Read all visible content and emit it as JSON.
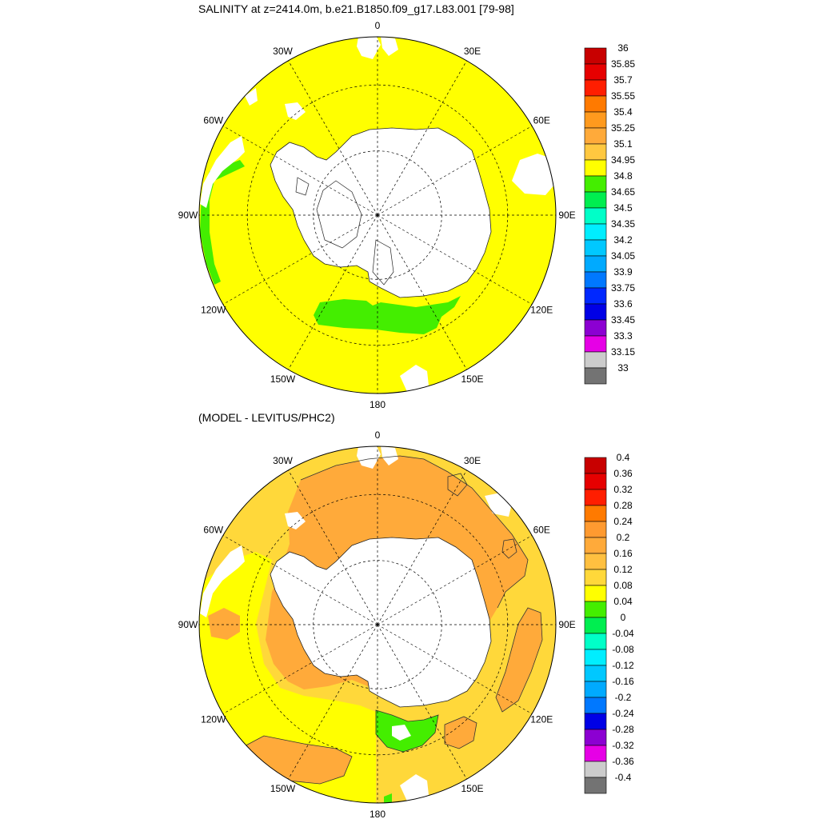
{
  "panels": [
    {
      "title": "SALINITY at z=2414.0m, b.e21.B1850.f09_g17.L83.001 [79-98]",
      "colorbar": {
        "labels": [
          "36",
          "35.85",
          "35.7",
          "35.55",
          "35.4",
          "35.25",
          "35.1",
          "34.95",
          "34.8",
          "34.65",
          "34.5",
          "34.35",
          "34.2",
          "34.05",
          "33.9",
          "33.75",
          "33.6",
          "33.45",
          "33.3",
          "33.15",
          "33"
        ],
        "colors": [
          "#c80000",
          "#e60000",
          "#ff1e00",
          "#ff7a00",
          "#ff9a1e",
          "#ffaa3a",
          "#ffc840",
          "#ffff00",
          "#44ee00",
          "#00ee50",
          "#00ffc8",
          "#00eeff",
          "#00c8ff",
          "#00aaff",
          "#0078ff",
          "#0028ff",
          "#0000e6",
          "#8c00d2",
          "#e600e6",
          "#cccccc",
          "#737373"
        ]
      }
    },
    {
      "title": "(MODEL - LEVITUS/PHC2)",
      "colorbar": {
        "labels": [
          "0.4",
          "0.36",
          "0.32",
          "0.28",
          "0.24",
          "0.2",
          "0.16",
          "0.12",
          "0.08",
          "0.04",
          "0",
          "-0.04",
          "-0.08",
          "-0.12",
          "-0.16",
          "-0.2",
          "-0.24",
          "-0.28",
          "-0.32",
          "-0.36",
          "-0.4"
        ],
        "colors": [
          "#c80000",
          "#e60000",
          "#ff1e00",
          "#ff7a00",
          "#ff9a30",
          "#ffaa3a",
          "#ffc040",
          "#ffd83a",
          "#ffff00",
          "#44ee00",
          "#00ee50",
          "#00ffc8",
          "#00eeff",
          "#00c8ff",
          "#00aaff",
          "#0078ff",
          "#0000e6",
          "#8c00d2",
          "#e600e6",
          "#cccccc",
          "#737373"
        ]
      }
    }
  ],
  "map_labels": [
    "0",
    "30E",
    "60E",
    "90E",
    "120E",
    "150E",
    "180",
    "150W",
    "120W",
    "90W",
    "60W",
    "30W"
  ],
  "colors": {
    "ocean_top": "#ffff00",
    "ocean_bottom": "#ffd83a",
    "orange_region": "#ffaa3a",
    "green_region": "#44ee00",
    "land": "#ffffff"
  }
}
